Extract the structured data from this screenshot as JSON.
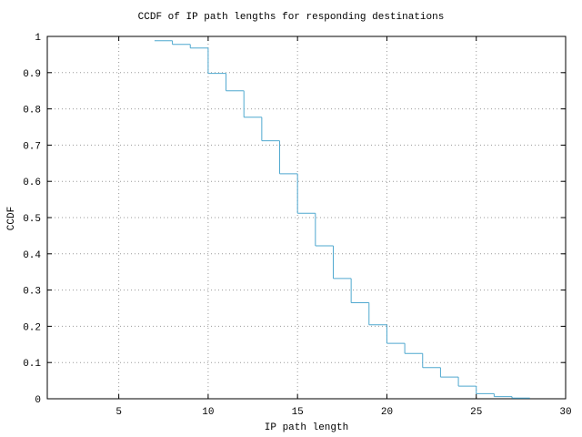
{
  "chart_data": {
    "type": "step",
    "title": "CCDF of IP path lengths for responding destinations",
    "xlabel": "IP path length",
    "ylabel": "CCDF",
    "x": [
      7,
      8,
      9,
      10,
      11,
      12,
      13,
      14,
      15,
      16,
      17,
      18,
      19,
      20,
      21,
      22,
      23,
      24,
      25,
      26,
      27
    ],
    "series": [
      {
        "color": "#4fa8cf",
        "values": [
          0.988,
          0.978,
          0.968,
          0.898,
          0.85,
          0.777,
          0.712,
          0.621,
          0.512,
          0.422,
          0.332,
          0.265,
          0.204,
          0.153,
          0.125,
          0.086,
          0.06,
          0.035,
          0.014,
          0.006,
          0.002
        ]
      }
    ],
    "xlim": [
      1,
      30
    ],
    "ylim": [
      0,
      1
    ],
    "xticks": [
      5,
      10,
      15,
      20,
      25,
      30
    ],
    "yticks": [
      0,
      0.1,
      0.2,
      0.3,
      0.4,
      0.5,
      0.6,
      0.7,
      0.8,
      0.9,
      1
    ],
    "grid": true
  }
}
